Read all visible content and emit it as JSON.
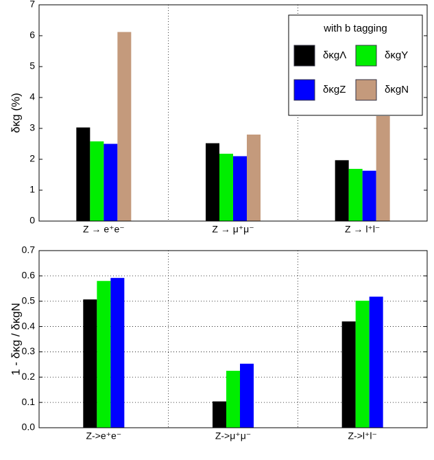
{
  "chart_data": [
    {
      "type": "bar",
      "y_label": "δκg (%)",
      "categories": [
        "Z → e⁺e⁻",
        "Z → μ⁺μ⁻",
        "Z → l⁺l⁻"
      ],
      "series": [
        {
          "name": "δκgΛ",
          "color": "#000000",
          "values": [
            3.03,
            2.52,
            1.97
          ]
        },
        {
          "name": "δκgY",
          "color": "#00ee00",
          "values": [
            2.58,
            2.18,
            1.69
          ]
        },
        {
          "name": "δκgZ",
          "color": "#0000ff",
          "values": [
            2.5,
            2.1,
            1.63
          ]
        },
        {
          "name": "δκgN",
          "color": "#c49a7c",
          "values": [
            6.12,
            2.8,
            3.4
          ]
        }
      ],
      "legend_title": "with b tagging",
      "legend": "upper right",
      "ylim": [
        0,
        7
      ],
      "yticks": [
        0,
        1,
        2,
        3,
        4,
        5,
        6,
        7
      ],
      "grid": "x"
    },
    {
      "type": "bar",
      "y_label": "1 - δκg / δκgN",
      "categories": [
        "Z->e⁺e⁻",
        "Z->μ⁺μ⁻",
        "Z->l⁺l⁻"
      ],
      "series": [
        {
          "color": "#000000",
          "values": [
            0.507,
            0.104,
            0.42
          ]
        },
        {
          "color": "#00ee00",
          "values": [
            0.58,
            0.225,
            0.502
          ]
        },
        {
          "color": "#0000ff",
          "values": [
            0.592,
            0.253,
            0.518
          ]
        }
      ],
      "ylim": [
        0,
        0.7
      ],
      "yticks": [
        {
          "value": 0,
          "label": "0.0"
        },
        0.1,
        0.2,
        0.3,
        0.4,
        0.5,
        0.6,
        0.7
      ],
      "grid": "both"
    }
  ]
}
